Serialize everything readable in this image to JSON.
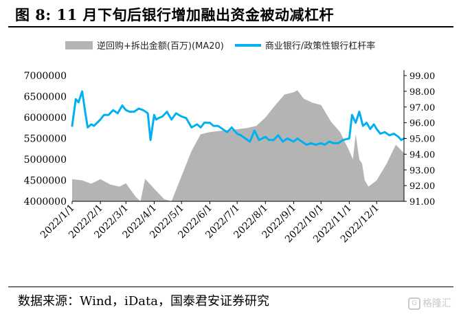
{
  "figure": {
    "title": "图 8:  11 月下旬后银行增加融出资金被动减杠杆",
    "source": "数据来源：Wind，iData，国泰君安证券研究",
    "watermark": "格隆汇"
  },
  "colors": {
    "area": "#b4b4b4",
    "line": "#00b0f0"
  },
  "chart_data": {
    "type": "area+line",
    "legend_position": "top",
    "grid": false,
    "series": [
      {
        "name": "逆回购+拆出金额(百万)(MA20)",
        "type": "area",
        "axis": "left",
        "x": [
          "2022-01-01",
          "2022-01-12",
          "2022-01-22",
          "2022-02-01",
          "2022-02-12",
          "2022-02-22",
          "2022-03-01",
          "2022-03-12",
          "2022-03-17",
          "2022-03-22",
          "2022-04-01",
          "2022-04-12",
          "2022-04-20",
          "2022-05-01",
          "2022-05-12",
          "2022-05-22",
          "2022-06-01",
          "2022-06-12",
          "2022-06-22",
          "2022-07-01",
          "2022-07-12",
          "2022-07-22",
          "2022-08-01",
          "2022-08-12",
          "2022-08-22",
          "2022-09-01",
          "2022-09-05",
          "2022-09-12",
          "2022-09-22",
          "2022-10-01",
          "2022-10-12",
          "2022-10-22",
          "2022-11-01",
          "2022-11-05",
          "2022-11-08",
          "2022-11-12",
          "2022-11-15",
          "2022-11-18",
          "2022-11-22",
          "2022-12-01",
          "2022-12-12",
          "2022-12-22",
          "2022-12-31"
        ],
        "values": [
          4530000,
          4500000,
          4420000,
          4530000,
          4400000,
          4350000,
          4430000,
          4100000,
          4000000,
          4540000,
          4300000,
          4050000,
          4000000,
          4600000,
          5200000,
          5600000,
          5650000,
          5680000,
          5700000,
          5720000,
          5750000,
          5800000,
          6000000,
          6300000,
          6550000,
          6600000,
          6650000,
          6450000,
          6350000,
          6300000,
          5900000,
          5650000,
          5200000,
          5000000,
          5600000,
          5000000,
          4900000,
          4500000,
          4350000,
          4500000,
          4900000,
          5350000,
          5150000
        ]
      },
      {
        "name": "商业银行/政策性银行杠杆率",
        "type": "line",
        "axis": "right",
        "x": [
          "2022-01-01",
          "2022-01-05",
          "2022-01-08",
          "2022-01-12",
          "2022-01-15",
          "2022-01-18",
          "2022-01-22",
          "2022-01-25",
          "2022-02-01",
          "2022-02-05",
          "2022-02-10",
          "2022-02-15",
          "2022-02-20",
          "2022-02-25",
          "2022-03-01",
          "2022-03-05",
          "2022-03-10",
          "2022-03-15",
          "2022-03-20",
          "2022-03-25",
          "2022-03-28",
          "2022-04-01",
          "2022-04-03",
          "2022-04-06",
          "2022-04-10",
          "2022-04-15",
          "2022-04-20",
          "2022-04-25",
          "2022-05-01",
          "2022-05-06",
          "2022-05-12",
          "2022-05-18",
          "2022-05-22",
          "2022-05-26",
          "2022-06-01",
          "2022-06-05",
          "2022-06-10",
          "2022-06-15",
          "2022-06-20",
          "2022-06-25",
          "2022-07-01",
          "2022-07-05",
          "2022-07-10",
          "2022-07-15",
          "2022-07-20",
          "2022-07-25",
          "2022-08-01",
          "2022-08-05",
          "2022-08-10",
          "2022-08-15",
          "2022-08-20",
          "2022-08-25",
          "2022-09-01",
          "2022-09-05",
          "2022-09-10",
          "2022-09-15",
          "2022-09-20",
          "2022-09-25",
          "2022-10-01",
          "2022-10-05",
          "2022-10-10",
          "2022-10-15",
          "2022-10-20",
          "2022-10-25",
          "2022-11-01",
          "2022-11-04",
          "2022-11-08",
          "2022-11-12",
          "2022-11-16",
          "2022-11-20",
          "2022-11-24",
          "2022-11-28",
          "2022-12-01",
          "2022-12-05",
          "2022-12-10",
          "2022-12-15",
          "2022-12-20",
          "2022-12-25",
          "2022-12-28",
          "2022-12-31"
        ],
        "values": [
          95.8,
          97.5,
          97.3,
          98.0,
          96.8,
          95.7,
          95.9,
          95.8,
          96.2,
          96.5,
          96.5,
          96.8,
          96.6,
          97.1,
          96.8,
          96.7,
          96.7,
          96.9,
          96.8,
          96.6,
          94.9,
          96.5,
          96.2,
          96.3,
          96.4,
          96.7,
          96.2,
          96.6,
          96.4,
          96.3,
          95.7,
          95.9,
          95.7,
          96.0,
          96.0,
          95.8,
          95.8,
          95.6,
          95.4,
          95.7,
          95.3,
          95.2,
          95.0,
          94.8,
          95.5,
          94.9,
          95.1,
          94.9,
          94.9,
          95.2,
          94.8,
          95.0,
          94.8,
          95.0,
          94.8,
          94.6,
          94.7,
          94.6,
          94.7,
          94.6,
          94.8,
          94.7,
          94.7,
          94.9,
          95.0,
          96.5,
          96.0,
          96.7,
          95.8,
          96.0,
          95.6,
          95.9,
          95.6,
          95.3,
          95.4,
          95.2,
          95.3,
          95.1,
          94.9,
          95.0
        ]
      }
    ],
    "x_ticks": [
      "2022/1/1",
      "2022/2/1",
      "2022/3/1",
      "2022/4/1",
      "2022/5/1",
      "2022/6/1",
      "2022/7/1",
      "2022/8/1",
      "2022/9/1",
      "2022/10/1",
      "2022/11/1",
      "2022/12/1"
    ],
    "x_tick_dates": [
      "2022-01-01",
      "2022-02-01",
      "2022-03-01",
      "2022-04-01",
      "2022-05-01",
      "2022-06-01",
      "2022-07-01",
      "2022-08-01",
      "2022-09-01",
      "2022-10-01",
      "2022-11-01",
      "2022-12-01"
    ],
    "y_left": {
      "ylim": [
        4000000,
        7000000
      ],
      "ticks": [
        "4000000",
        "4500000",
        "5000000",
        "5500000",
        "6000000",
        "6500000",
        "7000000"
      ]
    },
    "y_right": {
      "ylim": [
        91,
        99
      ],
      "ticks": [
        "91.00",
        "92.00",
        "93.00",
        "94.00",
        "95.00",
        "96.00",
        "97.00",
        "98.00",
        "99.00"
      ]
    }
  }
}
